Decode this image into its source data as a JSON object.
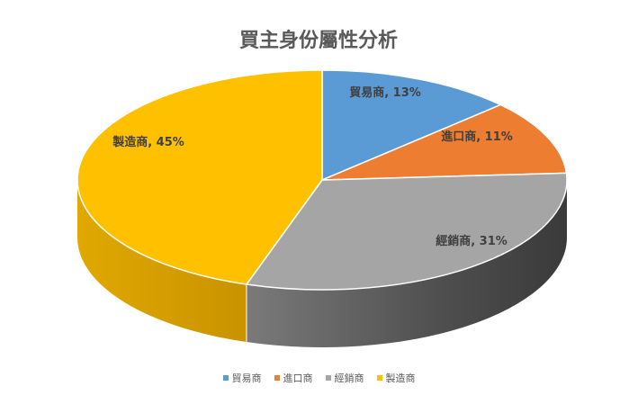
{
  "chart_data": {
    "type": "pie",
    "title": "買主身份屬性分析",
    "categories": [
      "貿易商",
      "進口商",
      "經銷商",
      "製造商"
    ],
    "values": [
      13,
      11,
      31,
      45
    ],
    "unit": "%",
    "colors": [
      "#5B9BD5",
      "#ED7D31",
      "#A5A5A5",
      "#FFC000"
    ],
    "legend_position": "bottom",
    "is_3d": true
  }
}
